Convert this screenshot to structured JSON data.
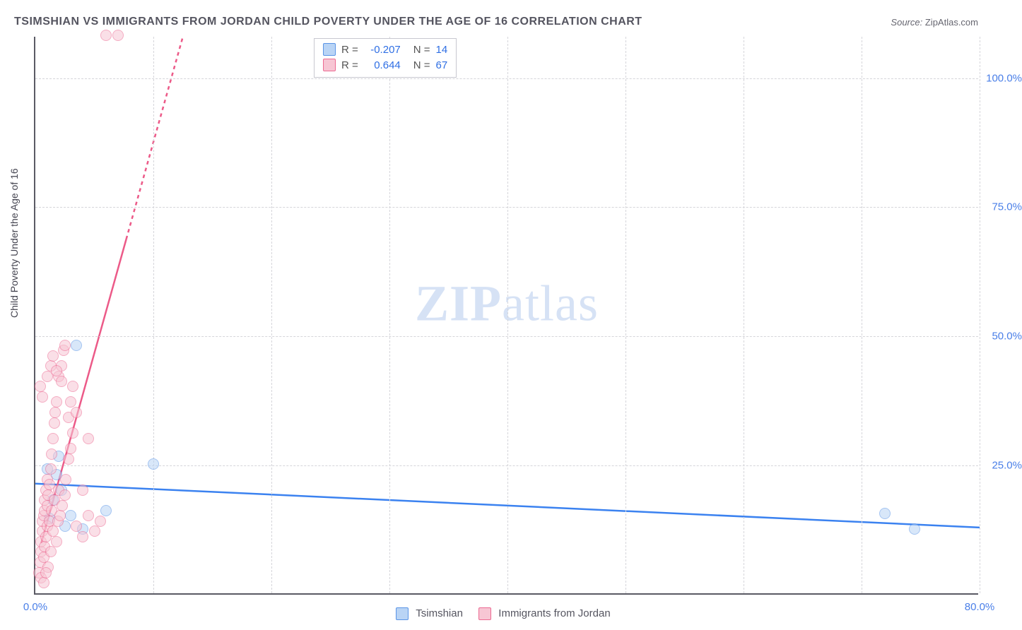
{
  "title": "TSIMSHIAN VS IMMIGRANTS FROM JORDAN CHILD POVERTY UNDER THE AGE OF 16 CORRELATION CHART",
  "source_label": "Source:",
  "source_value": "ZipAtlas.com",
  "y_axis_label": "Child Poverty Under the Age of 16",
  "watermark": {
    "bold": "ZIP",
    "rest": "atlas"
  },
  "chart": {
    "type": "scatter-correlation",
    "background_color": "#ffffff",
    "grid_color": "#d5d5da",
    "axis_color": "#5a5a64",
    "tick_color": "#4a7fe8",
    "title_color": "#555560",
    "title_fontsize": 16,
    "label_fontsize": 14,
    "tick_fontsize": 15,
    "xlim": [
      0,
      80
    ],
    "ylim": [
      0,
      108
    ],
    "x_ticks": [
      0,
      80
    ],
    "x_tick_labels": [
      "0.0%",
      "80.0%"
    ],
    "x_grid": [
      10,
      20,
      30,
      40,
      50,
      60,
      70,
      80
    ],
    "y_ticks": [
      25,
      50,
      75,
      100
    ],
    "y_tick_labels": [
      "25.0%",
      "50.0%",
      "75.0%",
      "100.0%"
    ],
    "marker_radius": 8,
    "marker_opacity": 0.55,
    "series": [
      {
        "name": "Tsimshian",
        "fill": "#b9d4f5",
        "stroke": "#5a94e6",
        "line_color": "#3b82f0",
        "line_width": 2.5,
        "r": -0.207,
        "n": 14,
        "trend": {
          "x1": 0,
          "y1": 21.5,
          "x2": 80,
          "y2": 13.0,
          "dash_after_x": null
        },
        "points": [
          [
            1.0,
            24.0
          ],
          [
            1.2,
            14.5
          ],
          [
            1.5,
            18.0
          ],
          [
            1.8,
            23.0
          ],
          [
            2.0,
            26.5
          ],
          [
            2.5,
            13.0
          ],
          [
            3.0,
            15.0
          ],
          [
            3.5,
            48.0
          ],
          [
            4.0,
            12.5
          ],
          [
            6.0,
            16.0
          ],
          [
            10.0,
            25.0
          ],
          [
            72.0,
            15.5
          ],
          [
            74.5,
            12.5
          ],
          [
            2.2,
            20.0
          ]
        ]
      },
      {
        "name": "Immigrants from Jordan",
        "fill": "#f7c6d4",
        "stroke": "#ec6a92",
        "line_color": "#ec5a88",
        "line_width": 2.5,
        "r": 0.644,
        "n": 67,
        "trend": {
          "x1": 0.5,
          "y1": 10,
          "x2": 12.5,
          "y2": 108,
          "dash_after_x": 7.7
        },
        "points": [
          [
            0.3,
            4
          ],
          [
            0.4,
            6
          ],
          [
            0.5,
            8
          ],
          [
            0.5,
            10
          ],
          [
            0.6,
            12
          ],
          [
            0.6,
            14
          ],
          [
            0.7,
            7
          ],
          [
            0.7,
            15
          ],
          [
            0.8,
            16
          ],
          [
            0.8,
            18
          ],
          [
            0.8,
            9
          ],
          [
            0.9,
            11
          ],
          [
            0.9,
            20
          ],
          [
            1.0,
            13
          ],
          [
            1.0,
            17
          ],
          [
            1.0,
            22
          ],
          [
            1.1,
            5
          ],
          [
            1.1,
            19
          ],
          [
            1.2,
            14
          ],
          [
            1.2,
            21
          ],
          [
            1.3,
            8
          ],
          [
            1.3,
            24
          ],
          [
            1.4,
            16
          ],
          [
            1.4,
            27
          ],
          [
            1.5,
            12
          ],
          [
            1.5,
            30
          ],
          [
            1.6,
            18
          ],
          [
            1.6,
            33
          ],
          [
            1.7,
            35
          ],
          [
            1.8,
            10
          ],
          [
            1.8,
            37
          ],
          [
            1.9,
            14
          ],
          [
            2.0,
            20
          ],
          [
            2.0,
            42
          ],
          [
            2.1,
            15
          ],
          [
            2.2,
            44
          ],
          [
            2.3,
            17
          ],
          [
            2.4,
            47
          ],
          [
            2.5,
            19
          ],
          [
            2.5,
            48
          ],
          [
            2.6,
            22
          ],
          [
            2.8,
            26
          ],
          [
            2.8,
            34
          ],
          [
            3.0,
            28
          ],
          [
            3.0,
            37
          ],
          [
            3.2,
            31
          ],
          [
            3.2,
            40
          ],
          [
            3.5,
            35
          ],
          [
            3.5,
            13
          ],
          [
            4.0,
            20
          ],
          [
            4.0,
            11
          ],
          [
            4.5,
            30
          ],
          [
            4.5,
            15
          ],
          [
            5.0,
            12
          ],
          [
            5.5,
            14
          ],
          [
            6.0,
            108
          ],
          [
            7.0,
            108
          ],
          [
            0.4,
            40
          ],
          [
            0.6,
            38
          ],
          [
            1.0,
            42
          ],
          [
            1.3,
            44
          ],
          [
            1.5,
            46
          ],
          [
            1.8,
            43
          ],
          [
            2.2,
            41
          ],
          [
            0.5,
            3
          ],
          [
            0.7,
            2
          ],
          [
            0.9,
            4
          ]
        ]
      }
    ]
  },
  "legend_top": {
    "r_label": "R =",
    "n_label": "N ="
  },
  "legend_bottom": {
    "items": [
      "Tsimshian",
      "Immigrants from Jordan"
    ]
  }
}
